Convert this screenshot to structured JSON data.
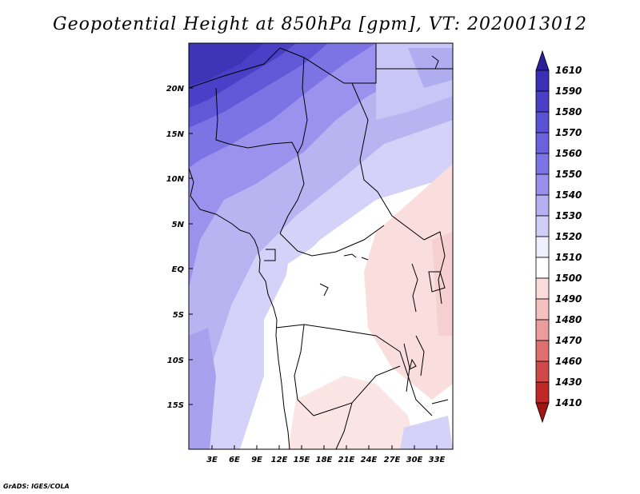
{
  "title": "Geopotential Height at 850hPa [gpm], VT: 2020013012",
  "footer": "GrADS: IGES/COLA",
  "map": {
    "y_ticks": [
      "20N",
      "15N",
      "10N",
      "5N",
      "EQ",
      "5S",
      "10S",
      "15S"
    ],
    "x_ticks": [
      "3E",
      "6E",
      "9E",
      "12E",
      "15E",
      "18E",
      "21E",
      "24E",
      "27E",
      "30E",
      "33E"
    ]
  },
  "colorbar": {
    "levels": [
      "1610",
      "1590",
      "1580",
      "1570",
      "1560",
      "1550",
      "1540",
      "1530",
      "1520",
      "1510",
      "1500",
      "1490",
      "1480",
      "1470",
      "1460",
      "1430",
      "1410"
    ],
    "colors": [
      "#2b1f9a",
      "#3a30b8",
      "#4a40c8",
      "#5a52d4",
      "#6a62dc",
      "#7c74e4",
      "#9890ec",
      "#b4b0f2",
      "#d0ceF8",
      "#eeeefc",
      "#ffffff",
      "#fadcdc",
      "#f4c0c0",
      "#ec9c9c",
      "#e07070",
      "#d04848",
      "#c02828",
      "#a01414"
    ]
  },
  "colors": {
    "ocean_light": "#c8c8f4",
    "north_dark": "#3e34b8",
    "warm_low": "#fadede"
  }
}
